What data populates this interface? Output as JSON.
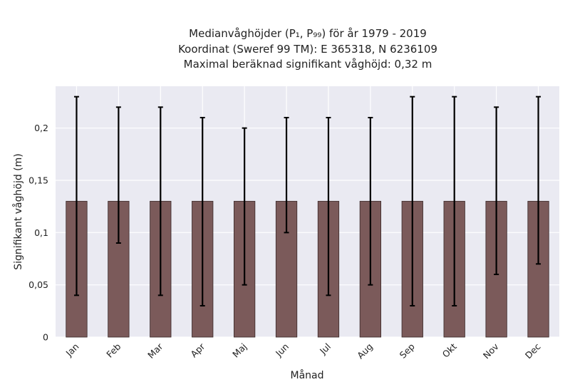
{
  "chart_data": {
    "type": "bar",
    "title_lines": [
      "Medianvåghöjder (P₁, P₉₉) för år 1979 - 2019",
      "Koordinat (Sweref 99 TM): E 365318, N 6236109",
      "Maximal beräknad signifikant våghöjd: 0,32 m"
    ],
    "xlabel": "Månad",
    "ylabel": "Signifikant våghöjd (m)",
    "categories": [
      "Jan",
      "Feb",
      "Mar",
      "Apr",
      "Maj",
      "Jun",
      "Jul",
      "Aug",
      "Sep",
      "Okt",
      "Nov",
      "Dec"
    ],
    "values": [
      0.13,
      0.13,
      0.13,
      0.13,
      0.13,
      0.13,
      0.13,
      0.13,
      0.13,
      0.13,
      0.13,
      0.13
    ],
    "p1": [
      0.04,
      0.09,
      0.04,
      0.03,
      0.05,
      0.1,
      0.04,
      0.05,
      0.03,
      0.03,
      0.06,
      0.07
    ],
    "p99": [
      0.23,
      0.22,
      0.22,
      0.21,
      0.2,
      0.21,
      0.21,
      0.21,
      0.23,
      0.23,
      0.22,
      0.23
    ],
    "ylim": [
      0,
      0.24
    ],
    "yticks": [
      0,
      0.05,
      0.1,
      0.15,
      0.2
    ],
    "ytick_labels": [
      "0",
      "0,05",
      "0,1",
      "0,15",
      "0,2"
    ],
    "grid": true,
    "colors": {
      "bar": "#7b5a5a",
      "bar_edge": "#3a2a2a",
      "error": "#000000",
      "plot_bg": "#eaeaf2",
      "grid": "#ffffff"
    }
  }
}
